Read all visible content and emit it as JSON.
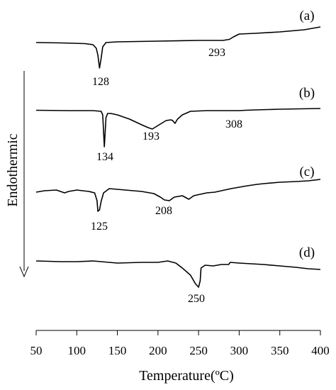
{
  "chart_data": {
    "type": "line",
    "xlabel": "Temperature(ºC)",
    "ylabel": "Endothermic",
    "xlim": [
      50,
      400
    ],
    "x_ticks": [
      "50",
      "100",
      "150",
      "200",
      "250",
      "300",
      "350",
      "400"
    ],
    "grid": false,
    "series": [
      {
        "name": "(a)",
        "points": [
          [
            50,
            60
          ],
          [
            80,
            60.5
          ],
          [
            110,
            61.5
          ],
          [
            120,
            63
          ],
          [
            124,
            68
          ],
          [
            126,
            78
          ],
          [
            128,
            96
          ],
          [
            130,
            82
          ],
          [
            132,
            66
          ],
          [
            136,
            60
          ],
          [
            150,
            59
          ],
          [
            200,
            58
          ],
          [
            250,
            57
          ],
          [
            280,
            57
          ],
          [
            288,
            55.5
          ],
          [
            293,
            52
          ],
          [
            300,
            48
          ],
          [
            320,
            47
          ],
          [
            350,
            45
          ],
          [
            380,
            42
          ],
          [
            400,
            38
          ]
        ],
        "annotations": [
          {
            "text": "128",
            "x": 128
          },
          {
            "text": "293",
            "x": 293
          }
        ]
      },
      {
        "name": "(b)",
        "points": [
          [
            50,
            155.5
          ],
          [
            90,
            156
          ],
          [
            120,
            156
          ],
          [
            130,
            157
          ],
          [
            132,
            162
          ],
          [
            134,
            207
          ],
          [
            136,
            166
          ],
          [
            138,
            160
          ],
          [
            142,
            160
          ],
          [
            150,
            162
          ],
          [
            165,
            168
          ],
          [
            180,
            176
          ],
          [
            188,
            180
          ],
          [
            193,
            182
          ],
          [
            200,
            177
          ],
          [
            210,
            170
          ],
          [
            216,
            169
          ],
          [
            218,
            170
          ],
          [
            221,
            174
          ],
          [
            224,
            168
          ],
          [
            230,
            162
          ],
          [
            240,
            157
          ],
          [
            260,
            156
          ],
          [
            300,
            156
          ],
          [
            308,
            155.5
          ],
          [
            320,
            155
          ],
          [
            350,
            154
          ],
          [
            400,
            153
          ]
        ],
        "annotations": [
          {
            "text": "134",
            "x": 134
          },
          {
            "text": "193",
            "x": 193
          },
          {
            "text": "308",
            "x": 308
          }
        ]
      },
      {
        "name": "(c)",
        "points": [
          [
            50,
            271
          ],
          [
            60,
            269
          ],
          [
            75,
            268
          ],
          [
            85,
            272
          ],
          [
            90,
            270
          ],
          [
            100,
            268
          ],
          [
            115,
            270
          ],
          [
            122,
            272
          ],
          [
            125,
            283
          ],
          [
            126,
            298
          ],
          [
            128,
            296
          ],
          [
            130,
            284
          ],
          [
            133,
            272
          ],
          [
            140,
            266
          ],
          [
            160,
            268
          ],
          [
            180,
            270
          ],
          [
            195,
            273
          ],
          [
            203,
            278
          ],
          [
            208,
            282
          ],
          [
            214,
            283
          ],
          [
            220,
            278
          ],
          [
            230,
            276
          ],
          [
            238,
            281
          ],
          [
            244,
            276
          ],
          [
            260,
            272
          ],
          [
            270,
            271
          ],
          [
            282,
            268
          ],
          [
            290,
            266
          ],
          [
            300,
            264
          ],
          [
            310,
            262
          ],
          [
            322,
            260
          ],
          [
            330,
            259
          ],
          [
            350,
            257
          ],
          [
            370,
            256
          ],
          [
            385,
            255
          ],
          [
            400,
            253
          ]
        ],
        "annotations": [
          {
            "text": "125",
            "x": 125
          },
          {
            "text": "208",
            "x": 208
          }
        ]
      },
      {
        "name": "(d)",
        "points": [
          [
            50,
            368
          ],
          [
            80,
            369
          ],
          [
            100,
            369
          ],
          [
            120,
            368
          ],
          [
            150,
            371
          ],
          [
            180,
            370
          ],
          [
            200,
            370
          ],
          [
            212,
            368
          ],
          [
            222,
            371
          ],
          [
            230,
            378
          ],
          [
            240,
            388
          ],
          [
            246,
            400
          ],
          [
            250,
            405
          ],
          [
            252,
            396
          ],
          [
            253,
            378
          ],
          [
            258,
            374
          ],
          [
            268,
            375
          ],
          [
            278,
            373
          ],
          [
            287,
            373
          ],
          [
            289,
            370
          ],
          [
            300,
            371
          ],
          [
            330,
            373
          ],
          [
            350,
            375
          ],
          [
            370,
            377
          ],
          [
            385,
            379
          ],
          [
            400,
            380
          ]
        ],
        "annotations": [
          {
            "text": "250",
            "x": 250
          }
        ]
      }
    ]
  }
}
